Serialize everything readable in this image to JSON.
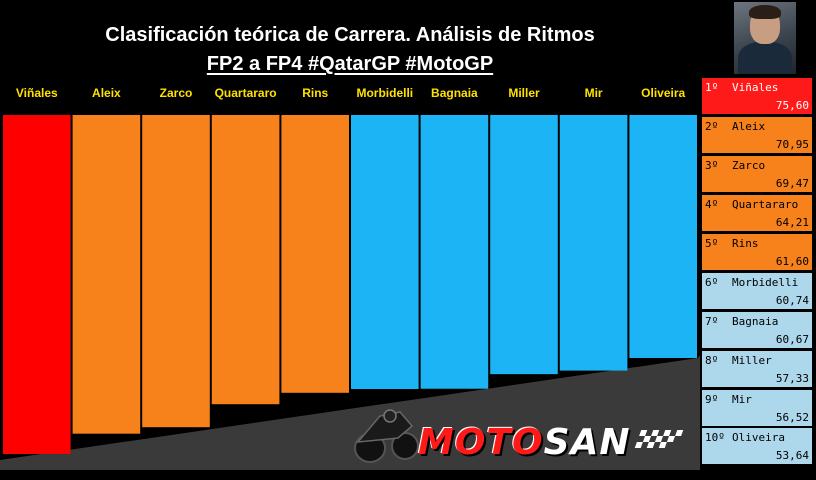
{
  "header": {
    "title": "Clasificación teórica de Carrera. Análisis de Ritmos",
    "subtitle": "FP2 a FP4 #QatarGP #MotoGP"
  },
  "logo": {
    "text_red": "MOTO",
    "text_white": "SAN"
  },
  "colors": {
    "yamaha": "#ff0000",
    "ktm_orange": "#f7821b",
    "blue": "#1cb4f5",
    "first_place_box": "#ff1a1a",
    "orange_box": "#f7821b",
    "blue_box": "#add8ec",
    "floor": "#3a3a3a",
    "label_yellow": "#ffe100"
  },
  "chart_data": {
    "type": "bar",
    "title": "Clasificación teórica de Carrera. Análisis de Ritmos",
    "subtitle": "FP2 a FP4 #QatarGP #MotoGP",
    "categories": [
      "Viñales",
      "Aleix",
      "Zarco",
      "Quartararo",
      "Rins",
      "Morbidelli",
      "Bagnaia",
      "Miller",
      "Mir",
      "Oliveira"
    ],
    "values": [
      75.6,
      70.95,
      69.47,
      64.21,
      61.6,
      60.74,
      60.67,
      57.33,
      56.52,
      53.64
    ],
    "bar_colors": [
      "#ff0000",
      "#f7821b",
      "#f7821b",
      "#f7821b",
      "#f7821b",
      "#1cb4f5",
      "#1cb4f5",
      "#1cb4f5",
      "#1cb4f5",
      "#1cb4f5"
    ],
    "ylim": [
      53.64,
      75.6
    ],
    "grid": false,
    "legend": "none"
  },
  "ranking": [
    {
      "pos": "1º",
      "name": "Viñales",
      "value": "75,60"
    },
    {
      "pos": "2º",
      "name": "Aleix",
      "value": "70,95"
    },
    {
      "pos": "3º",
      "name": "Zarco",
      "value": "69,47"
    },
    {
      "pos": "4º",
      "name": "Quartararo",
      "value": "64,21"
    },
    {
      "pos": "5º",
      "name": "Rins",
      "value": "61,60"
    },
    {
      "pos": "6º",
      "name": "Morbidelli",
      "value": "60,74"
    },
    {
      "pos": "7º",
      "name": "Bagnaia",
      "value": "60,67"
    },
    {
      "pos": "8º",
      "name": "Miller",
      "value": "57,33"
    },
    {
      "pos": "9º",
      "name": "Mir",
      "value": "56,52"
    },
    {
      "pos": "10º",
      "name": "Oliveira",
      "value": "53,64"
    }
  ]
}
